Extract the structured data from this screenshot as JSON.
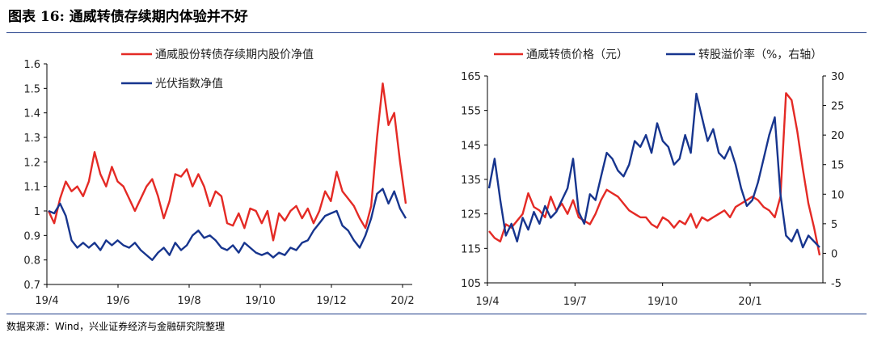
{
  "title": "图表 16:  通威转债存续期内体验并不好",
  "source": "数据来源：Wind，兴业证券经济与金融研究院整理",
  "colors": {
    "red": "#e42a25",
    "blue": "#17358e",
    "axis": "#000000",
    "rule": "#1f3c88"
  },
  "chart_data": [
    {
      "type": "line",
      "title": "",
      "xlabel": "",
      "ylabel": "",
      "x_ticks": [
        "19/4",
        "19/6",
        "19/8",
        "19/10",
        "19/12",
        "20/2"
      ],
      "ylim": [
        0.7,
        1.6
      ],
      "y_ticks": [
        "0.7",
        "0.8",
        "0.9",
        "1",
        "1.1",
        "1.2",
        "1.3",
        "1.4",
        "1.5",
        "1.6"
      ],
      "legend_position": "top-center",
      "series": [
        {
          "name": "通威股份转债存续期内股价净值",
          "color": "red",
          "values": [
            1.0,
            0.95,
            1.05,
            1.12,
            1.08,
            1.1,
            1.06,
            1.12,
            1.24,
            1.15,
            1.1,
            1.18,
            1.12,
            1.1,
            1.05,
            1.0,
            1.05,
            1.1,
            1.13,
            1.06,
            0.97,
            1.04,
            1.15,
            1.14,
            1.17,
            1.1,
            1.15,
            1.1,
            1.02,
            1.08,
            1.06,
            0.95,
            0.94,
            0.99,
            0.93,
            1.01,
            1.0,
            0.95,
            1.0,
            0.88,
            0.99,
            0.96,
            1.0,
            1.02,
            0.97,
            1.01,
            0.95,
            1.0,
            1.08,
            1.04,
            1.16,
            1.08,
            1.05,
            1.02,
            0.97,
            0.93,
            1.02,
            1.3,
            1.52,
            1.35,
            1.4,
            1.2,
            1.03
          ]
        },
        {
          "name": "光伏指数净值",
          "color": "blue",
          "values": [
            1.0,
            0.99,
            1.03,
            0.98,
            0.88,
            0.85,
            0.87,
            0.85,
            0.87,
            0.84,
            0.88,
            0.86,
            0.88,
            0.86,
            0.85,
            0.87,
            0.84,
            0.82,
            0.8,
            0.83,
            0.85,
            0.82,
            0.87,
            0.84,
            0.86,
            0.9,
            0.92,
            0.89,
            0.9,
            0.88,
            0.85,
            0.84,
            0.86,
            0.83,
            0.87,
            0.85,
            0.83,
            0.82,
            0.83,
            0.81,
            0.83,
            0.82,
            0.85,
            0.84,
            0.87,
            0.88,
            0.92,
            0.95,
            0.98,
            0.99,
            1.0,
            0.94,
            0.92,
            0.88,
            0.85,
            0.9,
            0.97,
            1.07,
            1.09,
            1.03,
            1.08,
            1.01,
            0.97
          ]
        }
      ]
    },
    {
      "type": "line",
      "title": "",
      "xlabel": "",
      "ylabel": "",
      "x_ticks": [
        "19/4",
        "19/7",
        "19/10",
        "20/1"
      ],
      "ylim_left": [
        105,
        165
      ],
      "ylim_right": [
        -5,
        30
      ],
      "y_ticks_left": [
        "105",
        "115",
        "125",
        "135",
        "145",
        "155",
        "165"
      ],
      "y_ticks_right": [
        "-5",
        "0",
        "5",
        "10",
        "15",
        "20",
        "25",
        "30"
      ],
      "legend_position": "top",
      "series": [
        {
          "name": "通威转债价格（元）",
          "axis": "left",
          "color": "red",
          "values": [
            120,
            118,
            117,
            122,
            121,
            123,
            125,
            131,
            127,
            126,
            124,
            130,
            126,
            128,
            125,
            129,
            124,
            123,
            122,
            125,
            129,
            132,
            131,
            130,
            128,
            126,
            125,
            124,
            124,
            122,
            121,
            124,
            123,
            121,
            123,
            122,
            125,
            121,
            124,
            123,
            124,
            125,
            126,
            124,
            127,
            128,
            129,
            130,
            129,
            127,
            126,
            124,
            130,
            160,
            158,
            149,
            138,
            128,
            121,
            113
          ]
        },
        {
          "name": "转股溢价率（%，右轴）",
          "axis": "right",
          "color": "blue",
          "values": [
            11,
            16,
            9,
            3,
            5,
            2,
            6,
            4,
            7,
            5,
            8,
            6,
            7,
            9,
            11,
            16,
            7,
            5,
            10,
            9,
            13,
            17,
            16,
            14,
            13,
            15,
            19,
            18,
            20,
            17,
            22,
            19,
            18,
            15,
            16,
            20,
            17,
            27,
            23,
            19,
            21,
            17,
            16,
            18,
            15,
            11,
            8,
            9,
            12,
            16,
            20,
            23,
            10,
            3,
            2,
            4,
            1,
            3,
            2,
            1
          ]
        }
      ]
    }
  ]
}
